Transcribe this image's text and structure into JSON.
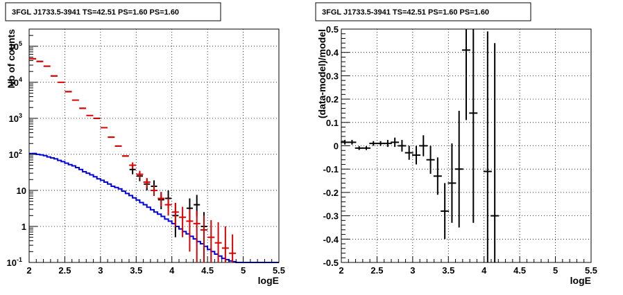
{
  "chart_data": [
    {
      "type": "line",
      "title": "3FGL J1733.5-3941 TS=42.51 PS=1.60 PS=1.60",
      "xlabel": "logE",
      "ylabel": "Nb of counts",
      "xlim": [
        2,
        5.5
      ],
      "ylim": [
        0.1,
        300000
      ],
      "yscale": "log",
      "grid": true,
      "x_ticks": [
        "2",
        "2.5",
        "3",
        "3.5",
        "4",
        "4.5",
        "5",
        "5.5"
      ],
      "y_ticks": [
        {
          "base": "10",
          "exp": "-1"
        },
        {
          "base": "1",
          "exp": ""
        },
        {
          "base": "10",
          "exp": ""
        },
        {
          "base": "10",
          "exp": "2"
        },
        {
          "base": "10",
          "exp": "3"
        },
        {
          "base": "10",
          "exp": "4"
        },
        {
          "base": "10",
          "exp": "5"
        }
      ],
      "colors": {
        "data": "#000000",
        "model": "#dd0000",
        "source": "#0000dd"
      },
      "series": [
        {
          "role": "data",
          "points": [
            [
              2.05,
              45000,
              0,
              0
            ],
            [
              2.15,
              38000,
              0,
              0
            ],
            [
              2.25,
              28000,
              0,
              0
            ],
            [
              2.35,
              15000,
              0,
              0
            ],
            [
              2.55,
              5500,
              0,
              0
            ],
            [
              2.75,
              1900,
              0,
              0
            ],
            [
              2.95,
              1000,
              0,
              0
            ],
            [
              3.15,
              300,
              0,
              0
            ],
            [
              3.25,
              170,
              0,
              0
            ],
            [
              3.35,
              90,
              0,
              0
            ],
            [
              3.45,
              38,
              28,
              48
            ],
            [
              3.55,
              25,
              18,
              33
            ],
            [
              3.65,
              15,
              10,
              21
            ],
            [
              3.75,
              13,
              8,
              19
            ],
            [
              3.85,
              5.5,
              3,
              9
            ],
            [
              3.95,
              6,
              3.2,
              10
            ],
            [
              4.05,
              2,
              0.5,
              4.5
            ],
            [
              4.25,
              3.2,
              1.4,
              6
            ],
            [
              4.35,
              4,
              1.9,
              7.5
            ],
            [
              4.45,
              1,
              0.1,
              2.5
            ]
          ]
        },
        {
          "role": "model",
          "points": [
            [
              2.05,
              45000,
              0,
              0
            ],
            [
              2.15,
              38000,
              0,
              0
            ],
            [
              2.25,
              28000,
              0,
              0
            ],
            [
              2.35,
              15000,
              0,
              0
            ],
            [
              2.45,
              10000,
              0,
              0
            ],
            [
              2.55,
              5500,
              0,
              0
            ],
            [
              2.65,
              3200,
              0,
              0
            ],
            [
              2.75,
              1900,
              0,
              0
            ],
            [
              2.85,
              1200,
              0,
              0
            ],
            [
              2.95,
              1000,
              0,
              0
            ],
            [
              3.05,
              550,
              0,
              0
            ],
            [
              3.15,
              300,
              0,
              0
            ],
            [
              3.25,
              170,
              0,
              0
            ],
            [
              3.35,
              90,
              0,
              0
            ],
            [
              3.45,
              50,
              40,
              60
            ],
            [
              3.55,
              28,
              22,
              35
            ],
            [
              3.65,
              17,
              12,
              22
            ],
            [
              3.75,
              10,
              7,
              14
            ],
            [
              3.85,
              6,
              3.6,
              9
            ],
            [
              3.95,
              4,
              2,
              6
            ],
            [
              4.05,
              2.5,
              1,
              4.5
            ],
            [
              4.15,
              1.8,
              0.5,
              3.5
            ],
            [
              4.25,
              1.4,
              0.2,
              3
            ],
            [
              4.35,
              1.2,
              0.1,
              2.7
            ],
            [
              4.45,
              0.8,
              0.1,
              2
            ],
            [
              4.55,
              0.5,
              0.1,
              1.5
            ],
            [
              4.65,
              0.35,
              0.1,
              1.3
            ],
            [
              4.75,
              0.25,
              0.1,
              1.0
            ],
            [
              4.85,
              0.18,
              0.1,
              0.6
            ]
          ]
        },
        {
          "role": "source",
          "edges": [
            2.0,
            2.05,
            2.1,
            2.15,
            2.2,
            2.25,
            2.3,
            2.35,
            2.4,
            2.45,
            2.5,
            2.55,
            2.6,
            2.65,
            2.7,
            2.75,
            2.8,
            2.85,
            2.9,
            2.95,
            3.0,
            3.05,
            3.1,
            3.15,
            3.2,
            3.25,
            3.3,
            3.35,
            3.4,
            3.45,
            3.5,
            3.55,
            3.6,
            3.65,
            3.7,
            3.75,
            3.8,
            3.85,
            3.9,
            3.95,
            4.0,
            4.05,
            4.1,
            4.15,
            4.2,
            4.25,
            4.3,
            4.35,
            4.4,
            4.45,
            4.5,
            4.55,
            4.6,
            4.65,
            4.7,
            4.75,
            4.8,
            4.85,
            4.9,
            5.0,
            5.5
          ],
          "values": [
            105,
            106,
            100,
            97,
            92,
            85,
            80,
            75,
            68,
            63,
            57,
            52,
            48,
            43,
            38,
            33,
            30,
            27,
            24,
            21,
            19,
            17,
            15,
            13,
            12,
            11,
            9.5,
            8.2,
            7.2,
            6.2,
            5.4,
            4.6,
            4.0,
            3.4,
            2.9,
            2.5,
            2.2,
            1.9,
            1.6,
            1.4,
            1.2,
            1.0,
            0.85,
            0.72,
            0.62,
            0.53,
            0.45,
            0.38,
            0.33,
            0.28,
            0.23,
            0.2,
            0.17,
            0.15,
            0.13,
            0.12,
            0.11,
            0.105,
            0.1,
            0.1
          ]
        }
      ]
    },
    {
      "type": "scatter",
      "title": "3FGL J1733.5-3941 TS=42.51 PS=1.60 PS=1.60",
      "xlabel": "logE",
      "ylabel": "(data-model)/model",
      "xlim": [
        2,
        5.5
      ],
      "ylim": [
        -0.5,
        0.5
      ],
      "grid": true,
      "x_ticks": [
        "2",
        "2.5",
        "3",
        "3.5",
        "4",
        "4.5",
        "5",
        "5.5"
      ],
      "y_ticks": [
        "0.5",
        "0.4",
        "0.3",
        "0.2",
        "0.1",
        "0",
        "-0.1",
        "-0.2",
        "-0.3",
        "-0.4",
        "-0.5"
      ],
      "points": [
        [
          2.05,
          0.015,
          0.01
        ],
        [
          2.15,
          0.015,
          0.01
        ],
        [
          2.25,
          -0.01,
          0.008
        ],
        [
          2.35,
          -0.01,
          0.008
        ],
        [
          2.45,
          0.01,
          0.01
        ],
        [
          2.55,
          0.01,
          0.01
        ],
        [
          2.65,
          0.01,
          0.015
        ],
        [
          2.75,
          0.015,
          0.02
        ],
        [
          2.85,
          0.0,
          0.025
        ],
        [
          2.95,
          -0.03,
          0.03
        ],
        [
          3.05,
          -0.04,
          0.04
        ],
        [
          3.15,
          0.0,
          0.045
        ],
        [
          3.25,
          -0.06,
          0.06
        ],
        [
          3.35,
          -0.13,
          0.08
        ],
        [
          3.45,
          -0.28,
          0.12
        ],
        [
          3.55,
          -0.16,
          0.17
        ],
        [
          3.65,
          -0.1,
          0.25
        ],
        [
          3.75,
          0.41,
          0.3
        ],
        [
          3.85,
          0.14,
          0.47
        ],
        [
          4.05,
          -0.11,
          0.6
        ],
        [
          4.15,
          -0.3,
          0.74
        ]
      ]
    }
  ]
}
